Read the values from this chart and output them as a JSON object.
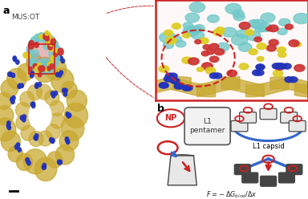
{
  "fig_width": 3.84,
  "fig_height": 2.48,
  "dpi": 100,
  "bg_color": "#ffffff",
  "label_a": "a",
  "label_b": "b",
  "mus_ot_label": "MUS:OT",
  "l1_pentamer": "L1\npentamer",
  "l1_capsid": "L1 capsid",
  "np_label": "NP",
  "gold": "#C8A830",
  "gold2": "#A07010",
  "blue_sphere": "#2233BB",
  "cyan_sphere": "#70C8C8",
  "red_sphere": "#CC3333",
  "yellow_sphere": "#DDCC22",
  "pink_core": "#d08080",
  "diagram_box_ec": "#444444",
  "diagram_box_fc": "#e8e8e8",
  "red_line": "#CC2222",
  "blue_line": "#3366CC"
}
